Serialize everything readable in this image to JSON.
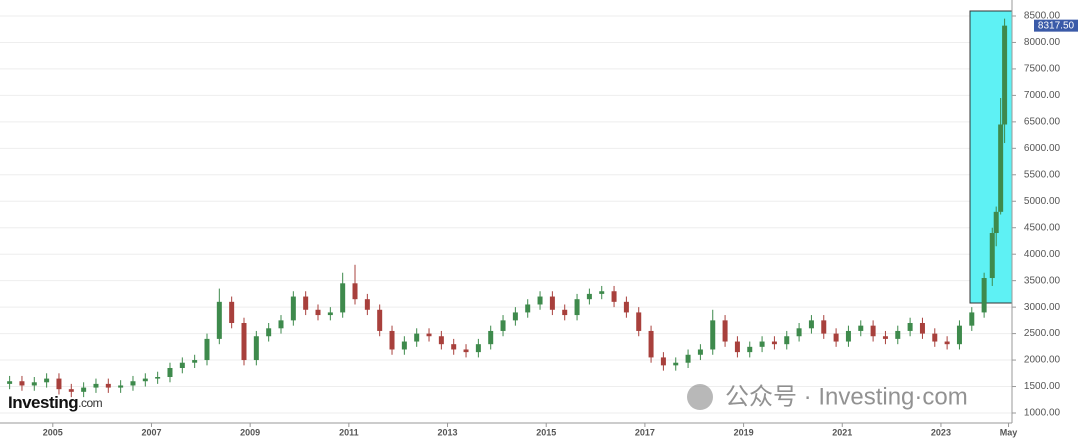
{
  "chart_data": {
    "type": "candlestick",
    "up_color": "#3e8a4c",
    "down_color": "#a8403c",
    "xlim": [
      2003.93,
      2024.44
    ],
    "xticks": [
      2005,
      2007,
      2009,
      2011,
      2013,
      2015,
      2017,
      2019,
      2021,
      2023,
      {
        "value": 2024.37,
        "label": "May"
      }
    ],
    "ylim": [
      811,
      8802
    ],
    "yticks": [
      {
        "value": 1000,
        "label": "1000.00"
      },
      {
        "value": 1500,
        "label": "1500.00"
      },
      {
        "value": 2000,
        "label": "2000.00"
      },
      {
        "value": 2500,
        "label": "2500.00"
      },
      {
        "value": 3000,
        "label": "3000.00"
      },
      {
        "value": 3500,
        "label": "3500.00"
      },
      {
        "value": 4000,
        "label": "4000.00"
      },
      {
        "value": 4500,
        "label": "4500.00"
      },
      {
        "value": 5000,
        "label": "5000.00"
      },
      {
        "value": 5500,
        "label": "5500.00"
      },
      {
        "value": 6000,
        "label": "6000.00"
      },
      {
        "value": 6500,
        "label": "6500.00"
      },
      {
        "value": 7000,
        "label": "7000.00"
      },
      {
        "value": 7500,
        "label": "7500.00"
      },
      {
        "value": 8000,
        "label": "8000.00"
      },
      {
        "value": 8500,
        "label": "8500.00"
      }
    ],
    "last_price": {
      "value": 8317.5,
      "label": "8317.50"
    },
    "logo": {
      "brand": "Investing",
      "suffix": ".com"
    },
    "watermark": "公众号 · Investing·com",
    "x": [
      2004.125,
      2004.375,
      2004.625,
      2004.875,
      2005.125,
      2005.375,
      2005.625,
      2005.875,
      2006.125,
      2006.375,
      2006.625,
      2006.875,
      2007.125,
      2007.375,
      2007.625,
      2007.875,
      2008.125,
      2008.375,
      2008.625,
      2008.875,
      2009.125,
      2009.375,
      2009.625,
      2009.875,
      2010.125,
      2010.375,
      2010.625,
      2010.875,
      2011.125,
      2011.375,
      2011.625,
      2011.875,
      2012.125,
      2012.375,
      2012.625,
      2012.875,
      2013.125,
      2013.375,
      2013.625,
      2013.875,
      2014.125,
      2014.375,
      2014.625,
      2014.875,
      2015.125,
      2015.375,
      2015.625,
      2015.875,
      2016.125,
      2016.375,
      2016.625,
      2016.875,
      2017.125,
      2017.375,
      2017.625,
      2017.875,
      2018.125,
      2018.375,
      2018.625,
      2018.875,
      2019.125,
      2019.375,
      2019.625,
      2019.875,
      2020.125,
      2020.375,
      2020.625,
      2020.875,
      2021.125,
      2021.375,
      2021.625,
      2021.875,
      2022.125,
      2022.375,
      2022.625,
      2022.875,
      2023.125,
      2023.375,
      2023.625,
      2023.875,
      2024.04,
      2024.12,
      2024.21,
      2024.29
    ],
    "open": [
      1550,
      1600,
      1520,
      1580,
      1650,
      1450,
      1400,
      1480,
      1550,
      1480,
      1520,
      1600,
      1650,
      1680,
      1850,
      1950,
      2000,
      2400,
      3100,
      2700,
      2000,
      2450,
      2600,
      2750,
      3200,
      2950,
      2850,
      2900,
      3450,
      3150,
      2950,
      2550,
      2200,
      2350,
      2500,
      2450,
      2300,
      2200,
      2150,
      2300,
      2550,
      2750,
      2900,
      3050,
      3200,
      2950,
      2850,
      3150,
      3250,
      3300,
      3100,
      2900,
      2550,
      2050,
      1900,
      1950,
      2100,
      2200,
      2750,
      2350,
      2150,
      2250,
      2350,
      2300,
      2450,
      2600,
      2750,
      2500,
      2350,
      2550,
      2650,
      2450,
      2400,
      2550,
      2700,
      2500,
      2350,
      2300,
      2650,
      2900,
      3550,
      4400,
      4800,
      6450
    ],
    "high": [
      1700,
      1700,
      1680,
      1750,
      1750,
      1550,
      1580,
      1650,
      1650,
      1620,
      1700,
      1750,
      1780,
      1950,
      2050,
      2100,
      2500,
      3350,
      3200,
      2800,
      2550,
      2700,
      2850,
      3300,
      3300,
      3050,
      3000,
      3650,
      3800,
      3250,
      3050,
      2650,
      2450,
      2600,
      2600,
      2550,
      2400,
      2300,
      2400,
      2650,
      2850,
      3000,
      3150,
      3300,
      3300,
      3050,
      3250,
      3350,
      3400,
      3400,
      3200,
      3000,
      2650,
      2150,
      2050,
      2200,
      2300,
      2950,
      2850,
      2450,
      2350,
      2450,
      2450,
      2550,
      2700,
      2850,
      2850,
      2600,
      2650,
      2750,
      2750,
      2550,
      2650,
      2800,
      2800,
      2600,
      2450,
      2750,
      3000,
      3650,
      4500,
      4900,
      6950,
      8450
    ],
    "low": [
      1450,
      1420,
      1420,
      1480,
      1350,
      1300,
      1300,
      1380,
      1380,
      1380,
      1420,
      1500,
      1550,
      1580,
      1750,
      1850,
      1900,
      2300,
      2600,
      1900,
      1900,
      2350,
      2500,
      2650,
      2850,
      2750,
      2750,
      2800,
      3050,
      2850,
      2450,
      2100,
      2100,
      2250,
      2350,
      2200,
      2100,
      2050,
      2050,
      2200,
      2450,
      2650,
      2800,
      2950,
      2850,
      2750,
      2750,
      3050,
      3150,
      3000,
      2800,
      2450,
      1950,
      1800,
      1800,
      1850,
      2000,
      2100,
      2250,
      2050,
      2050,
      2150,
      2200,
      2200,
      2350,
      2500,
      2400,
      2250,
      2250,
      2450,
      2350,
      2300,
      2300,
      2450,
      2400,
      2250,
      2200,
      2200,
      2550,
      2800,
      3400,
      4150,
      4750,
      6100
    ],
    "close": [
      1600,
      1520,
      1580,
      1650,
      1450,
      1400,
      1480,
      1550,
      1480,
      1520,
      1600,
      1650,
      1680,
      1850,
      1950,
      2000,
      2400,
      3100,
      2700,
      2000,
      2450,
      2600,
      2750,
      3200,
      2950,
      2850,
      2900,
      3450,
      3150,
      2950,
      2550,
      2200,
      2350,
      2500,
      2450,
      2300,
      2200,
      2150,
      2300,
      2550,
      2750,
      2900,
      3050,
      3200,
      2950,
      2850,
      3150,
      3250,
      3300,
      3100,
      2900,
      2550,
      2050,
      1900,
      1950,
      2100,
      2200,
      2750,
      2350,
      2150,
      2250,
      2350,
      2300,
      2450,
      2600,
      2750,
      2500,
      2350,
      2550,
      2650,
      2450,
      2400,
      2550,
      2700,
      2500,
      2350,
      2300,
      2650,
      2900,
      3550,
      4400,
      4800,
      6450,
      8317.5
    ]
  }
}
